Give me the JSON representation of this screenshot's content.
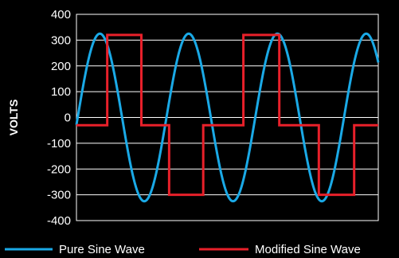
{
  "chart_data": {
    "type": "line",
    "title": "",
    "xlabel": "",
    "ylabel": "VOLTS",
    "ylim": [
      -400,
      400
    ],
    "yticks": [
      400,
      300,
      200,
      100,
      0,
      -100,
      -200,
      -300,
      -400
    ],
    "ytick_labels": [
      "400",
      "300",
      "200",
      "100",
      "0",
      "-100",
      "-200",
      "-300",
      "-400"
    ],
    "grid": true,
    "legend": "bottom",
    "series": [
      {
        "name": "Pure Sine Wave",
        "color": "#1aa9e6",
        "kind": "sine",
        "amplitude": 325,
        "cycles": 3.4,
        "phase_deg": -5
      },
      {
        "name": "Modified Sine Wave",
        "color": "#e8202a",
        "kind": "step",
        "points": [
          [
            0,
            -30
          ],
          [
            0.102,
            -30
          ],
          [
            0.102,
            320
          ],
          [
            0.215,
            320
          ],
          [
            0.215,
            -30
          ],
          [
            0.307,
            -30
          ],
          [
            0.307,
            -300
          ],
          [
            0.42,
            -300
          ],
          [
            0.42,
            -30
          ],
          [
            0.553,
            -30
          ],
          [
            0.553,
            320
          ],
          [
            0.672,
            320
          ],
          [
            0.672,
            -30
          ],
          [
            0.803,
            -30
          ],
          [
            0.803,
            -300
          ],
          [
            0.92,
            -300
          ],
          [
            0.92,
            -30
          ],
          [
            1,
            -30
          ]
        ]
      }
    ]
  }
}
